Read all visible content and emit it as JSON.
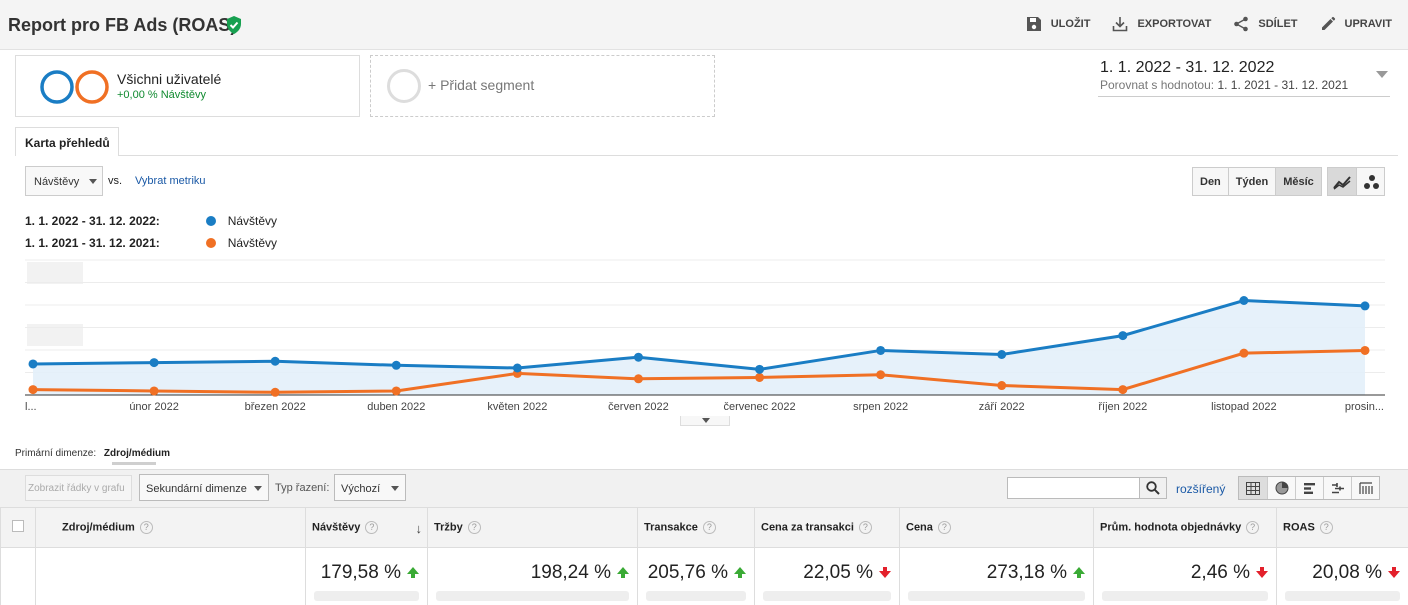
{
  "header": {
    "title": "Report pro FB Ads (ROAS)",
    "actions": [
      "ULOŽIT",
      "EXPORTOVAT",
      "SDÍLET",
      "UPRAVIT"
    ]
  },
  "segments": {
    "active": {
      "name": "Všichni uživatelé",
      "sub": "+0,00 % Návštěvy"
    },
    "add_label": "+ Přidat segment"
  },
  "date_range": {
    "main": "1. 1. 2022 - 31. 12. 2022",
    "compare_label": "Porovnat s hodnotou:",
    "compare_value": "1. 1. 2021 - 31. 12. 2021"
  },
  "tab": "Karta přehledů",
  "metric": {
    "selected": "Návštěvy",
    "vs": "vs.",
    "pick": "Vybrat metriku"
  },
  "granularity": [
    "Den",
    "Týden",
    "Měsíc"
  ],
  "granularity_active": "Měsíc",
  "legend": [
    {
      "period": "1. 1. 2022 - 31. 12. 2022:",
      "metric": "Návštěvy",
      "color": "#1a7dc4"
    },
    {
      "period": "1. 1. 2021 - 31. 12. 2021:",
      "metric": "Návštěvy",
      "color": "#f07024"
    }
  ],
  "chart_data": {
    "type": "line",
    "categories": [
      "l...",
      "únor 2022",
      "březen 2022",
      "duben 2022",
      "květen 2022",
      "červen 2022",
      "červenec 2022",
      "srpen 2022",
      "září 2022",
      "říjen 2022",
      "listopad 2022",
      "prosin..."
    ],
    "series": [
      {
        "name": "1. 1. 2022 - 31. 12. 2022: Návštěvy",
        "color": "#1a7dc4",
        "values": [
          23,
          24,
          25,
          22,
          20,
          28,
          19,
          33,
          30,
          44,
          70,
          66
        ]
      },
      {
        "name": "1. 1. 2021 - 31. 12. 2021: Návštěvy",
        "color": "#f07024",
        "values": [
          4,
          3,
          2,
          3,
          16,
          12,
          13,
          15,
          7,
          4,
          31,
          33
        ]
      }
    ],
    "ylim": [
      0,
      100
    ],
    "grid": true
  },
  "table": {
    "primary_dimension_label": "Primární dimenze:",
    "primary_dimension_value": "Zdroj/médium",
    "show_rows_btn": "Zobrazit řádky v grafu",
    "secondary_dim": "Sekundární dimenze",
    "sort_label": "Typ řazení:",
    "sort_value": "Výchozí",
    "advanced": "rozšířený",
    "columns": [
      "Zdroj/médium",
      "Návštěvy",
      "Tržby",
      "Transakce",
      "Cena za transakci",
      "Cena",
      "Prům. hodnota objednávky",
      "ROAS"
    ],
    "summary": [
      {
        "value": "179,58 %",
        "trend": "up"
      },
      {
        "value": "198,24 %",
        "trend": "up"
      },
      {
        "value": "205,76 %",
        "trend": "up"
      },
      {
        "value": "22,05 %",
        "trend": "down"
      },
      {
        "value": "273,18 %",
        "trend": "up"
      },
      {
        "value": "2,46 %",
        "trend": "down"
      },
      {
        "value": "20,08 %",
        "trend": "down"
      }
    ]
  }
}
